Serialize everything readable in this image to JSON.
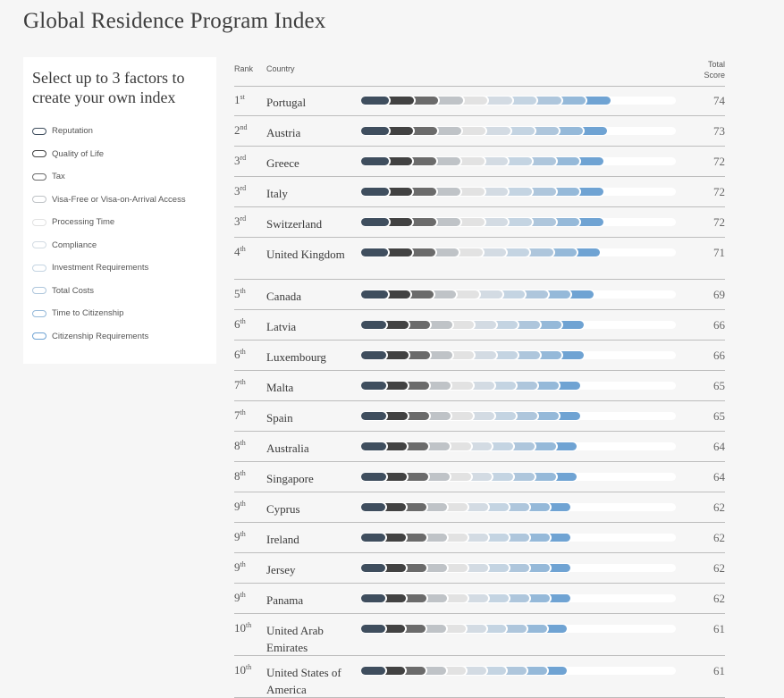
{
  "title": "Global Residence Program Index",
  "panel": {
    "heading": "Select up to 3 factors to create your own index",
    "factors": [
      {
        "label": "Reputation",
        "color": "#3f4e5e"
      },
      {
        "label": "Quality of Life",
        "color": "#424242"
      },
      {
        "label": "Tax",
        "color": "#6b6b6b"
      },
      {
        "label": "Visa-Free or Visa-on-Arrival Access",
        "color": "#bfc3c7"
      },
      {
        "label": "Processing Time",
        "color": "#e2e2e2"
      },
      {
        "label": "Compliance",
        "color": "#d3dbe3"
      },
      {
        "label": "Investment Requirements",
        "color": "#c4d4e2"
      },
      {
        "label": "Total Costs",
        "color": "#aec6dc"
      },
      {
        "label": "Time to Citizenship",
        "color": "#95b9d9"
      },
      {
        "label": "Citizenship Requirements",
        "color": "#6fa3d3"
      }
    ]
  },
  "table": {
    "rank_header": "Rank",
    "country_header": "Country",
    "score_header": "Total Score",
    "rows": [
      {
        "rank": "1",
        "suffix": "st",
        "country": "Portugal",
        "score": "74"
      },
      {
        "rank": "2",
        "suffix": "nd",
        "country": "Austria",
        "score": "73"
      },
      {
        "rank": "3",
        "suffix": "rd",
        "country": "Greece",
        "score": "72"
      },
      {
        "rank": "3",
        "suffix": "rd",
        "country": "Italy",
        "score": "72"
      },
      {
        "rank": "3",
        "suffix": "rd",
        "country": "Switzerland",
        "score": "72"
      },
      {
        "rank": "4",
        "suffix": "th",
        "country": "United Kingdom",
        "score": "71"
      },
      {
        "rank": "5",
        "suffix": "th",
        "country": "Canada",
        "score": "69"
      },
      {
        "rank": "6",
        "suffix": "th",
        "country": "Latvia",
        "score": "66"
      },
      {
        "rank": "6",
        "suffix": "th",
        "country": "Luxembourg",
        "score": "66"
      },
      {
        "rank": "7",
        "suffix": "th",
        "country": "Malta",
        "score": "65"
      },
      {
        "rank": "7",
        "suffix": "th",
        "country": "Spain",
        "score": "65"
      },
      {
        "rank": "8",
        "suffix": "th",
        "country": "Australia",
        "score": "64"
      },
      {
        "rank": "8",
        "suffix": "th",
        "country": "Singapore",
        "score": "64"
      },
      {
        "rank": "9",
        "suffix": "th",
        "country": "Cyprus",
        "score": "62"
      },
      {
        "rank": "9",
        "suffix": "th",
        "country": "Ireland",
        "score": "62"
      },
      {
        "rank": "9",
        "suffix": "th",
        "country": "Jersey",
        "score": "62"
      },
      {
        "rank": "9",
        "suffix": "th",
        "country": "Panama",
        "score": "62"
      },
      {
        "rank": "10",
        "suffix": "th",
        "country": "United Arab Emirates",
        "score": "61"
      },
      {
        "rank": "10",
        "suffix": "th",
        "country": "United States of America",
        "score": "61"
      }
    ]
  }
}
